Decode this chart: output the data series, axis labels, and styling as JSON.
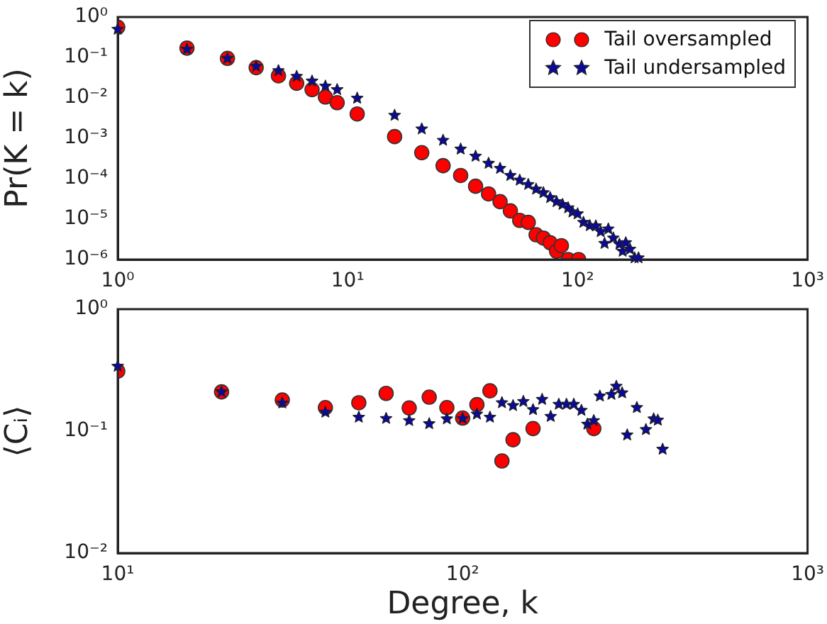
{
  "chart_data": [
    {
      "type": "scatter",
      "ylabel": "Pr(K = k)",
      "log": "xy",
      "legend": "top right",
      "grid": false,
      "xlim": [
        1,
        1000
      ],
      "ylim": [
        1e-06,
        1
      ],
      "xticks": [
        {
          "value": 1,
          "label": "10⁰"
        },
        {
          "value": 10,
          "label": "10¹"
        },
        {
          "value": 100,
          "label": "10²"
        },
        {
          "value": 1000,
          "label": "10³"
        }
      ],
      "yticks": [
        {
          "value": 1e-06,
          "label": "10⁻⁶"
        },
        {
          "value": 1e-05,
          "label": "10⁻⁵"
        },
        {
          "value": 0.0001,
          "label": "10⁻⁴"
        },
        {
          "value": 0.001,
          "label": "10⁻³"
        },
        {
          "value": 0.01,
          "label": "10⁻²"
        },
        {
          "value": 0.1,
          "label": "10⁻¹"
        },
        {
          "value": 1,
          "label": "10⁰"
        }
      ],
      "series": [
        {
          "name": "Tail oversampled",
          "color": "#ff0000",
          "marker": "circle",
          "x": [
            1,
            2,
            3,
            4,
            5,
            6,
            7,
            8,
            9,
            11,
            16,
            21,
            26,
            31,
            36,
            41,
            46,
            51,
            56,
            61,
            66,
            71,
            76,
            81,
            85,
            91,
            101
          ],
          "values": [
            0.56,
            0.17,
            0.095,
            0.056,
            0.035,
            0.023,
            0.016,
            0.0105,
            0.0076,
            0.004,
            0.0011,
            0.00044,
            0.00021,
            0.00012,
            6.5e-05,
            4.2e-05,
            2.7e-05,
            1.6e-05,
            9.3e-06,
            8.3e-06,
            4.1e-06,
            3.4e-06,
            2.6e-06,
            1.6e-06,
            2.2e-06,
            1e-06,
            1e-06
          ]
        },
        {
          "name": "Tail undersampled",
          "color": "#0a0a9a",
          "marker": "star",
          "x": [
            1,
            2,
            3,
            4,
            5,
            6,
            7,
            8,
            9,
            11,
            16,
            21,
            26,
            31,
            36,
            41,
            46,
            51,
            56,
            61,
            66,
            71,
            76,
            81,
            86,
            91,
            95,
            100,
            106,
            113,
            120,
            126,
            131,
            136,
            143,
            152,
            157,
            162,
            169,
            177,
            184
          ],
          "values": [
            0.5,
            0.16,
            0.095,
            0.06,
            0.047,
            0.034,
            0.026,
            0.0195,
            0.016,
            0.0098,
            0.0037,
            0.0017,
            0.00089,
            0.00054,
            0.00036,
            0.00024,
            0.00018,
            0.00012,
            9.2e-05,
            7.2e-05,
            5.5e-05,
            4.5e-05,
            3.4e-05,
            2.7e-05,
            2.3e-05,
            1.9e-05,
            1.5e-05,
            1.35e-05,
            8.3e-06,
            6.9e-06,
            6.8e-06,
            4.9e-06,
            2.5e-06,
            5.7e-06,
            3.4e-06,
            2.4e-06,
            1.6e-06,
            2.6e-06,
            1.8e-06,
            1.1e-06,
            1.1e-06
          ]
        }
      ]
    },
    {
      "type": "scatter",
      "xlabel": "Degree, k",
      "ylabel": "⟨Cᵢ⟩",
      "log": "xy",
      "legend": false,
      "grid": false,
      "xlim": [
        10,
        1000
      ],
      "ylim": [
        0.01,
        1
      ],
      "xticks": [
        {
          "value": 10,
          "label": "10¹"
        },
        {
          "value": 100,
          "label": "10²"
        },
        {
          "value": 1000,
          "label": "10³"
        }
      ],
      "yticks": [
        {
          "value": 0.01,
          "label": "10⁻²"
        },
        {
          "value": 0.1,
          "label": "10⁻¹"
        },
        {
          "value": 1,
          "label": "10⁰"
        }
      ],
      "series": [
        {
          "color": "#ff0000",
          "marker": "circle",
          "x": [
            10,
            20,
            30,
            40,
            50,
            60,
            70,
            80,
            90,
            100,
            110,
            120,
            130,
            140,
            160,
            240
          ],
          "values": [
            0.31,
            0.21,
            0.18,
            0.156,
            0.171,
            0.204,
            0.155,
            0.19,
            0.156,
            0.128,
            0.165,
            0.214,
            0.057,
            0.085,
            0.105,
            0.105
          ]
        },
        {
          "color": "#0a0a9a",
          "marker": "star",
          "x": [
            10,
            20,
            30,
            40,
            50,
            60,
            70,
            80,
            90,
            100,
            110,
            120,
            130,
            140,
            150,
            160,
            170,
            180,
            190,
            200,
            210,
            221,
            230,
            240,
            250,
            270,
            279,
            290,
            300,
            320,
            340,
            358,
            368,
            380
          ],
          "values": [
            0.34,
            0.21,
            0.17,
            0.143,
            0.13,
            0.127,
            0.122,
            0.115,
            0.126,
            0.127,
            0.138,
            0.13,
            0.171,
            0.162,
            0.175,
            0.15,
            0.182,
            0.132,
            0.166,
            0.166,
            0.166,
            0.148,
            0.114,
            0.122,
            0.194,
            0.2,
            0.233,
            0.206,
            0.093,
            0.156,
            0.103,
            0.126,
            0.123,
            0.071
          ]
        }
      ]
    }
  ]
}
